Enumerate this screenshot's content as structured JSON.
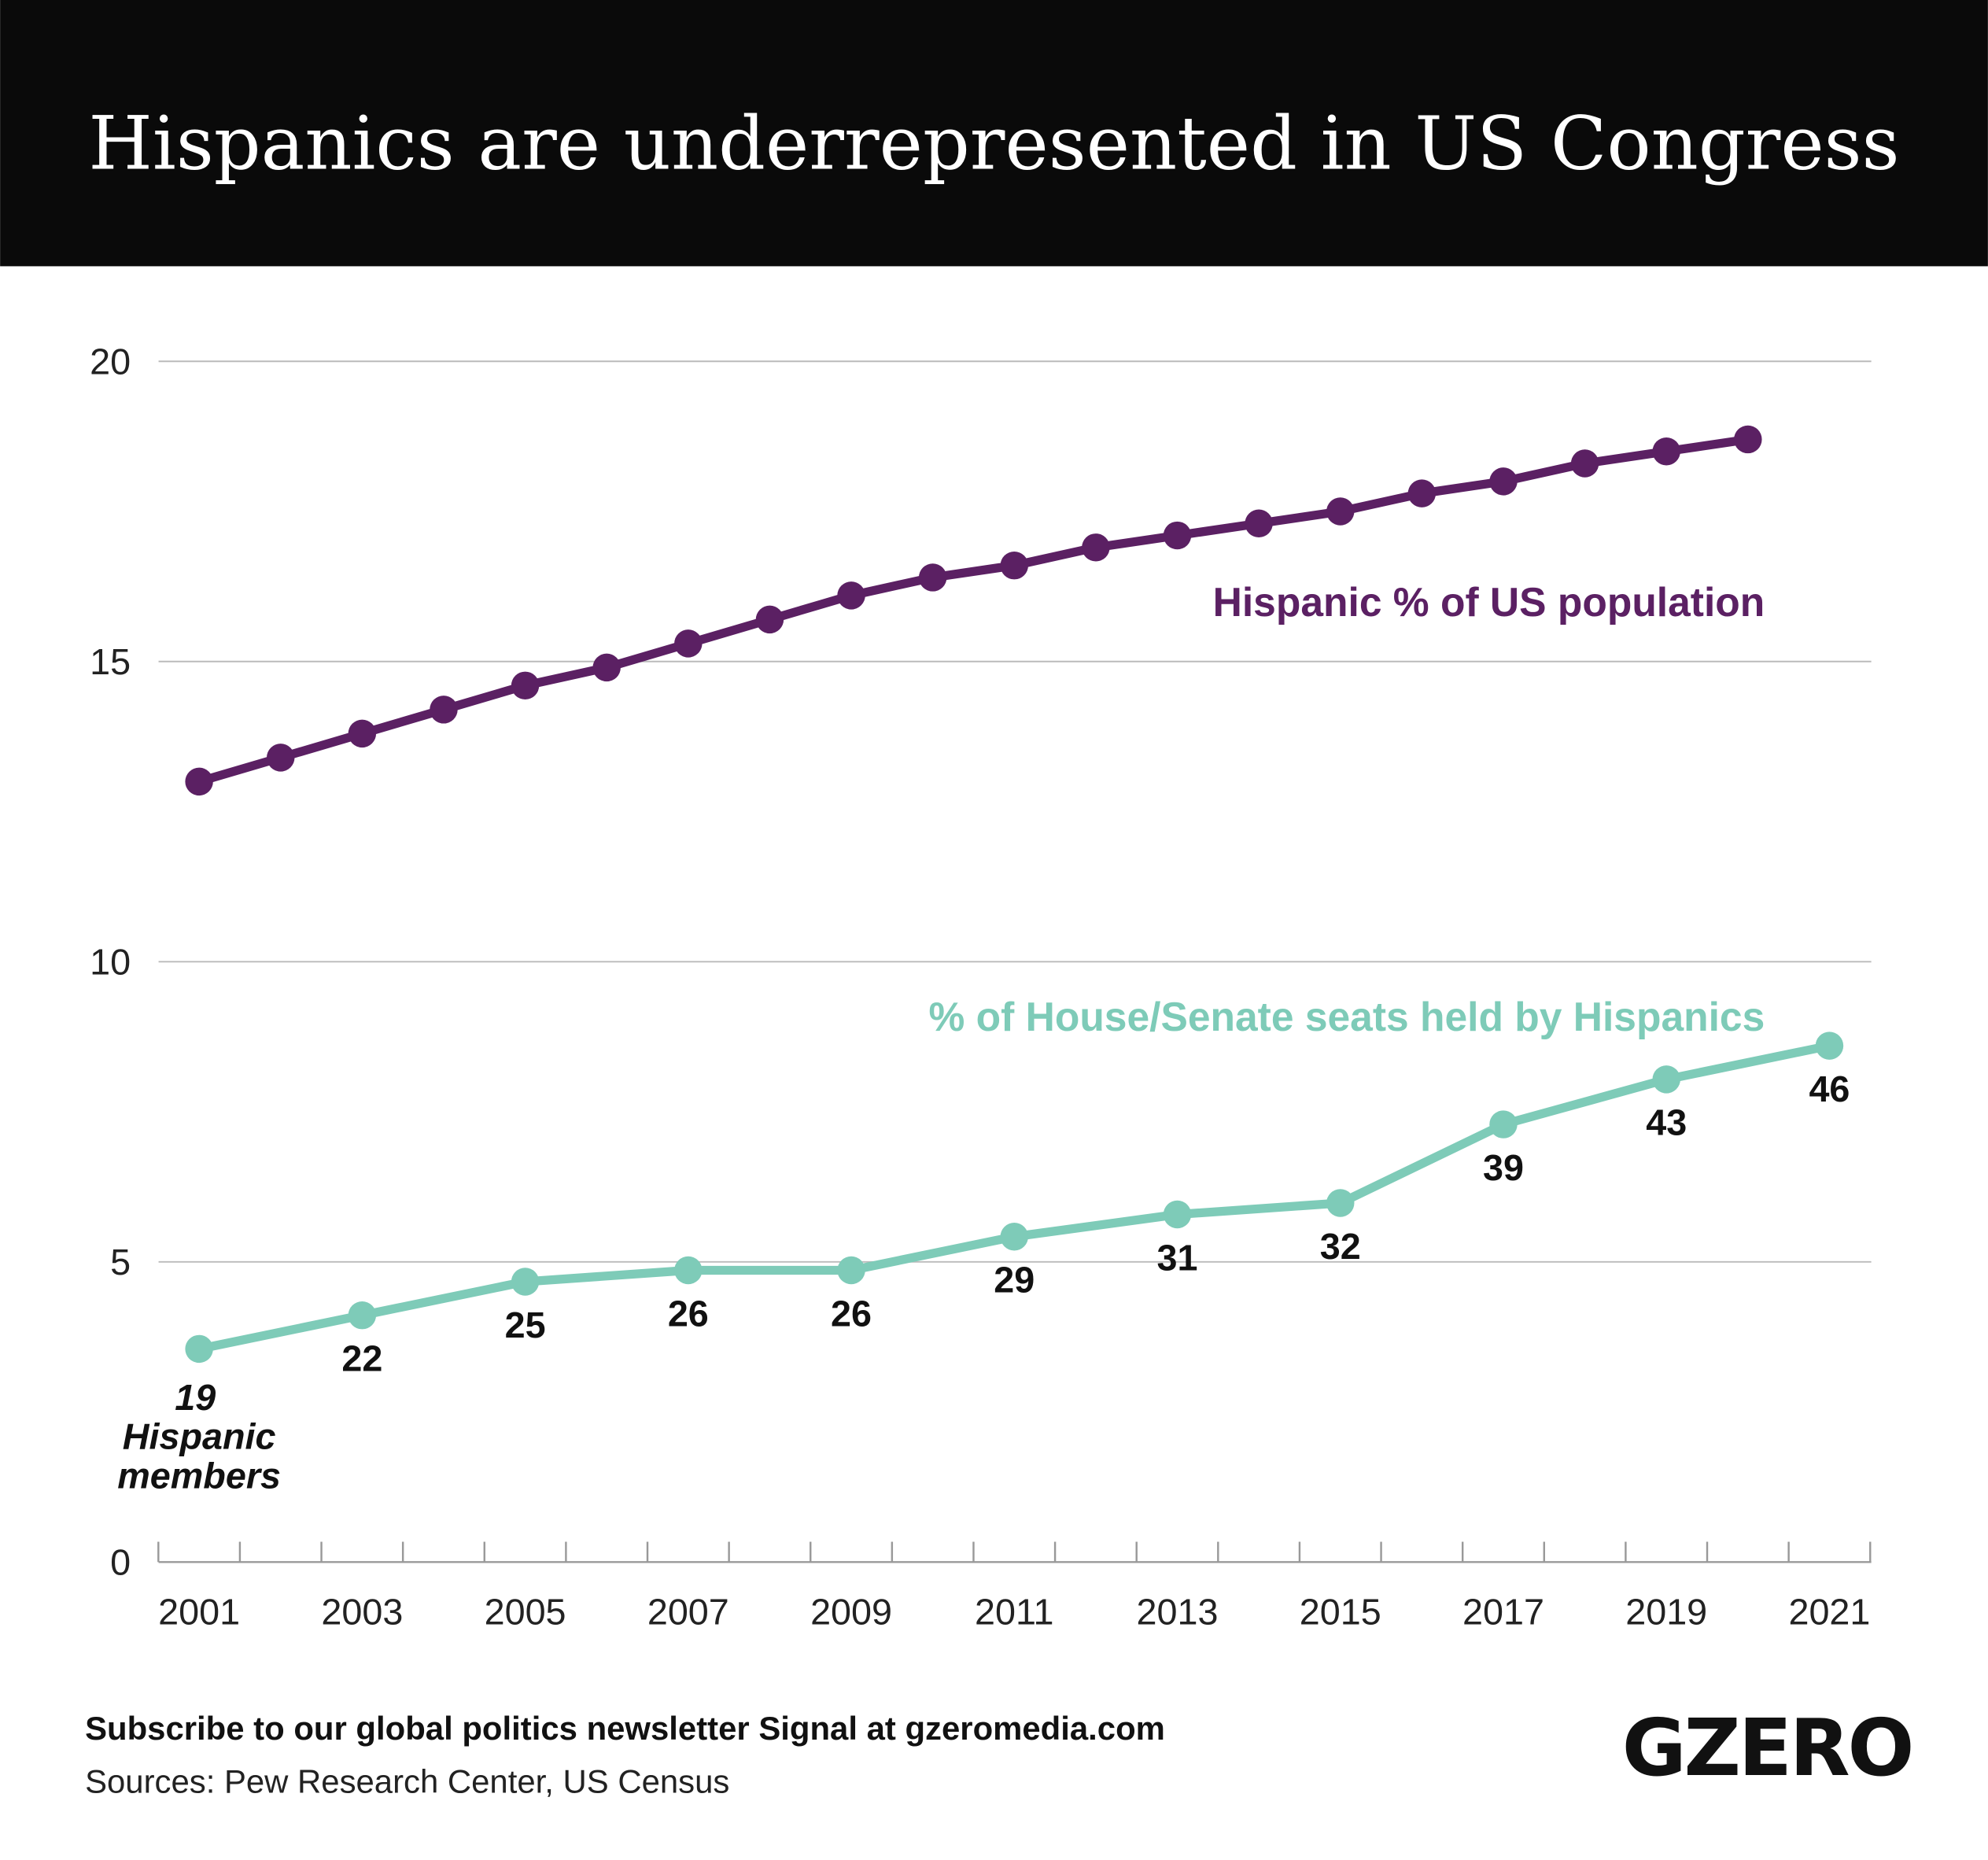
{
  "header": {
    "title": "Hispanics are underrepresented in US Congress"
  },
  "footer": {
    "subscribe": "Subscribe to our global politics newsletter Signal at gzeromedia.com",
    "sources": "Sources: Pew Research Center, US Census",
    "logo": "GZERO"
  },
  "chart_data": {
    "type": "line",
    "title": "Hispanics are underrepresented in US Congress",
    "xlabel": "",
    "ylabel": "",
    "ylim": [
      0,
      20
    ],
    "xlim": [
      2001,
      2021
    ],
    "y_ticks": [
      "0",
      "5",
      "10",
      "15",
      "20"
    ],
    "x_ticks": [
      "2001",
      "2003",
      "2005",
      "2007",
      "2009",
      "2011",
      "2013",
      "2015",
      "2017",
      "2019",
      "2021"
    ],
    "grid": "horizontal",
    "colors": {
      "population": "#5b2063",
      "seats": "#7ecbb8"
    },
    "series": [
      {
        "name": "Hispanic % of US population",
        "x": [
          2001,
          2002,
          2003,
          2004,
          2005,
          2006,
          2007,
          2008,
          2009,
          2010,
          2011,
          2012,
          2013,
          2014,
          2015,
          2016,
          2017,
          2018,
          2019,
          2020
        ],
        "values": [
          13.0,
          13.4,
          13.8,
          14.2,
          14.6,
          14.9,
          15.3,
          15.7,
          16.1,
          16.4,
          16.6,
          16.9,
          17.1,
          17.3,
          17.5,
          17.8,
          18.0,
          18.3,
          18.5,
          18.7
        ]
      },
      {
        "name": "% of House/Senate seats held by Hispanics",
        "x": [
          2001,
          2003,
          2005,
          2007,
          2009,
          2011,
          2013,
          2015,
          2017,
          2019,
          2021
        ],
        "values": [
          3.55,
          4.11,
          4.67,
          4.86,
          4.86,
          5.42,
          5.79,
          5.98,
          7.29,
          8.04,
          8.6
        ],
        "data_labels": [
          "19",
          "22",
          "25",
          "26",
          "26",
          "29",
          "31",
          "32",
          "39",
          "43",
          "46"
        ],
        "first_label_note": [
          "Hispanic",
          "members"
        ]
      }
    ]
  }
}
